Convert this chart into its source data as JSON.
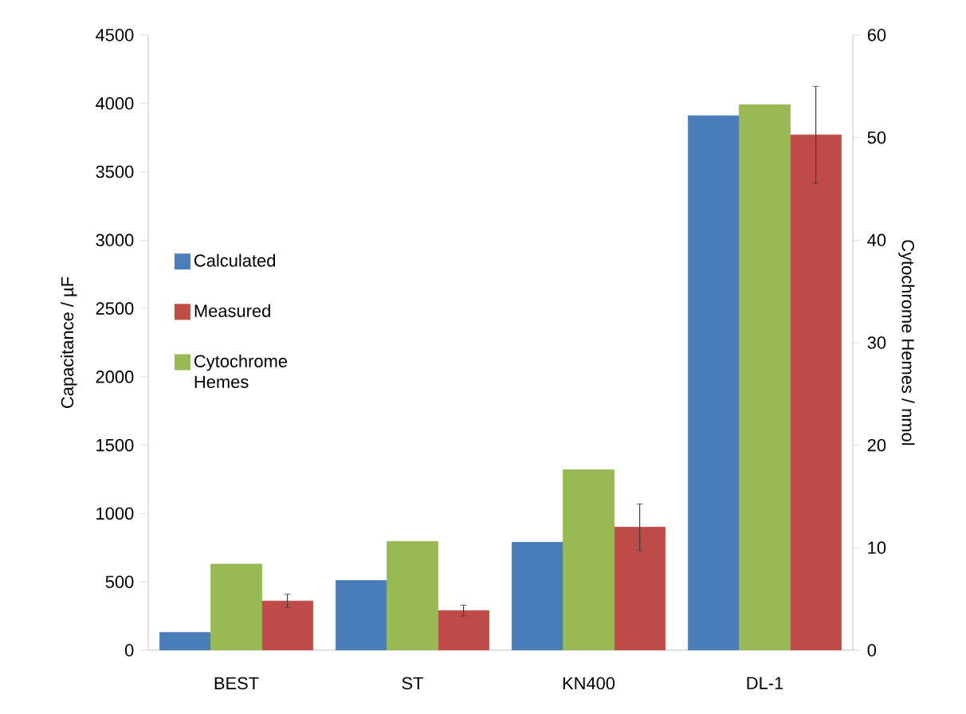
{
  "chart_data": {
    "type": "bar",
    "ylabel": "Capacitance / µF",
    "y2label": "Cytochrome Hemes / nmol",
    "categories": [
      "BEST",
      "ST",
      "KN400",
      "DL-1"
    ],
    "series": [
      {
        "name": "Calculated",
        "color": "#4a7ebb",
        "values": [
          130,
          510,
          790,
          3910
        ]
      },
      {
        "name": "Cytochrome Hemes",
        "color": "#98b954",
        "axis": "y2",
        "values": [
          8.4,
          10.6,
          17.6,
          53.2
        ]
      },
      {
        "name": "Measured",
        "color": "#be4b48",
        "values": [
          360,
          290,
          900,
          3770
        ],
        "errors": [
          50,
          40,
          170,
          355
        ]
      }
    ],
    "ylim": [
      0,
      4500
    ],
    "yticks": [
      0,
      500,
      1000,
      1500,
      2000,
      2500,
      3000,
      3500,
      4000,
      4500
    ],
    "y2lim": [
      0,
      60
    ],
    "y2ticks": [
      0,
      10,
      20,
      30,
      40,
      50,
      60
    ],
    "legend": "left",
    "grid": false
  }
}
